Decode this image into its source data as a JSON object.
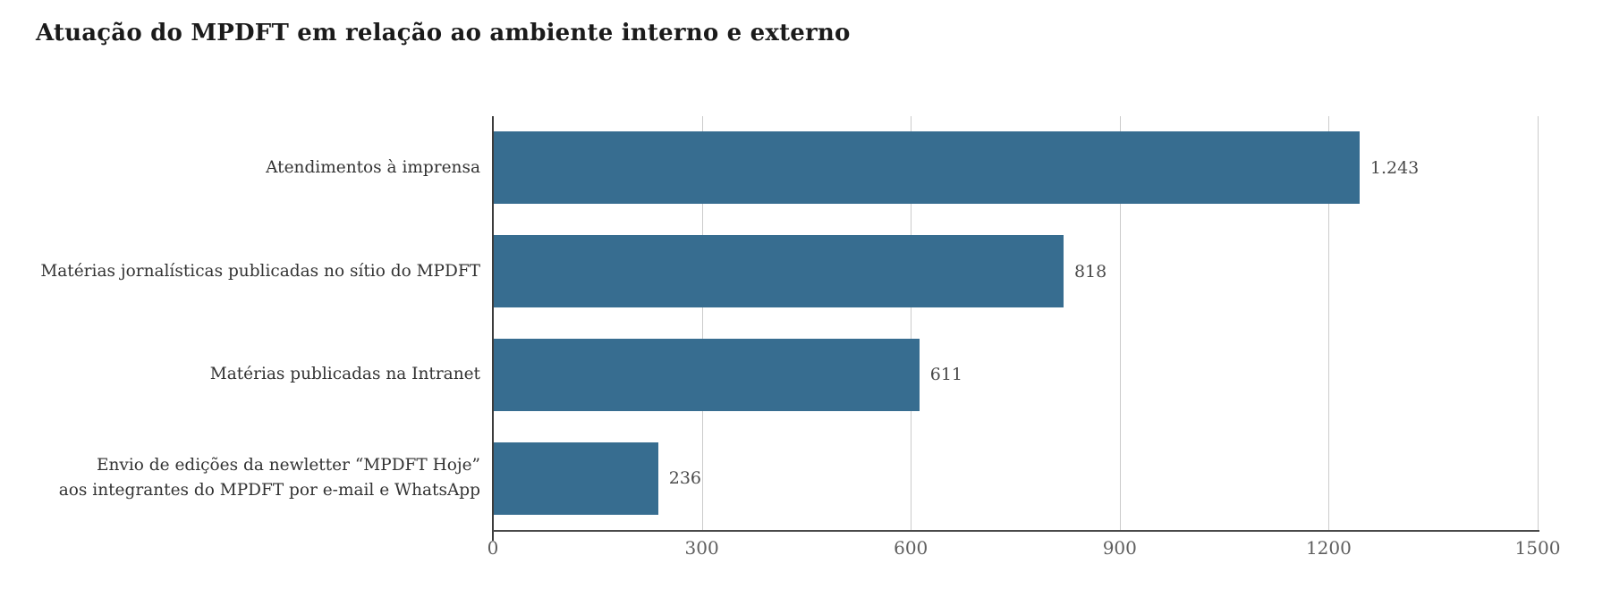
{
  "title": "Atuação do MPDFT em relação ao ambiente interno e externo",
  "colors": {
    "bar": "#376d90",
    "title_text": "#1b1b1b",
    "category_text": "#333333",
    "value_text": "#4a4a4a",
    "tick_text": "#5f5f5f",
    "grid_line": "#cbcbcb",
    "axis_line": "#4a4a4a",
    "background": "#ffffff"
  },
  "chart_data": {
    "type": "bar",
    "orientation": "horizontal",
    "title": "Atuação do MPDFT em relação ao ambiente interno e externo",
    "categories": [
      "Atendimentos à imprensa",
      "Matérias jornalísticas publicadas no sítio do MPDFT",
      "Matérias publicadas na Intranet",
      "Envio de edições da newletter “MPDFT Hoje”\naos integrantes do MPDFT por e-mail e WhatsApp"
    ],
    "values": [
      1243,
      818,
      611,
      236
    ],
    "value_labels": [
      "1.243",
      "818",
      "611",
      "236"
    ],
    "xlabel": "",
    "ylabel": "",
    "xlim": [
      0,
      1500
    ],
    "xticks": [
      0,
      300,
      600,
      900,
      1200,
      1500
    ],
    "xtick_labels": [
      "0",
      "300",
      "600",
      "900",
      "1200",
      "1500"
    ],
    "grid": true,
    "legend": false
  }
}
